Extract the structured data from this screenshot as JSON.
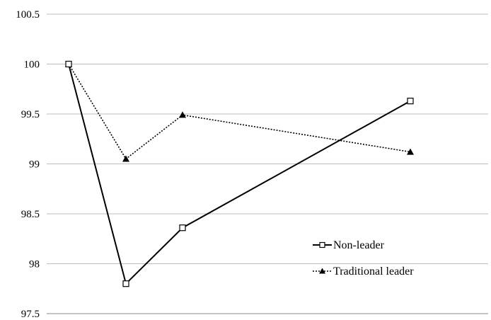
{
  "chart_data": {
    "type": "line",
    "title": "",
    "xlabel": "",
    "ylabel": "",
    "ylim": [
      97.5,
      100.5
    ],
    "yticks": [
      "100.5",
      "100",
      "99.5",
      "99",
      "98.5",
      "98",
      "97.5"
    ],
    "x": [
      0,
      1,
      2,
      6
    ],
    "grid": "horizontal",
    "legend_position": "right",
    "series": [
      {
        "name": "Non-leader",
        "values": [
          100,
          97.8,
          98.36,
          99.63
        ],
        "line": "solid",
        "marker": "open-square",
        "color": "#000000"
      },
      {
        "name": "Traditional leader",
        "values": [
          100,
          99.05,
          99.49,
          99.12
        ],
        "line": "dotted",
        "marker": "filled-triangle",
        "color": "#000000"
      }
    ]
  }
}
